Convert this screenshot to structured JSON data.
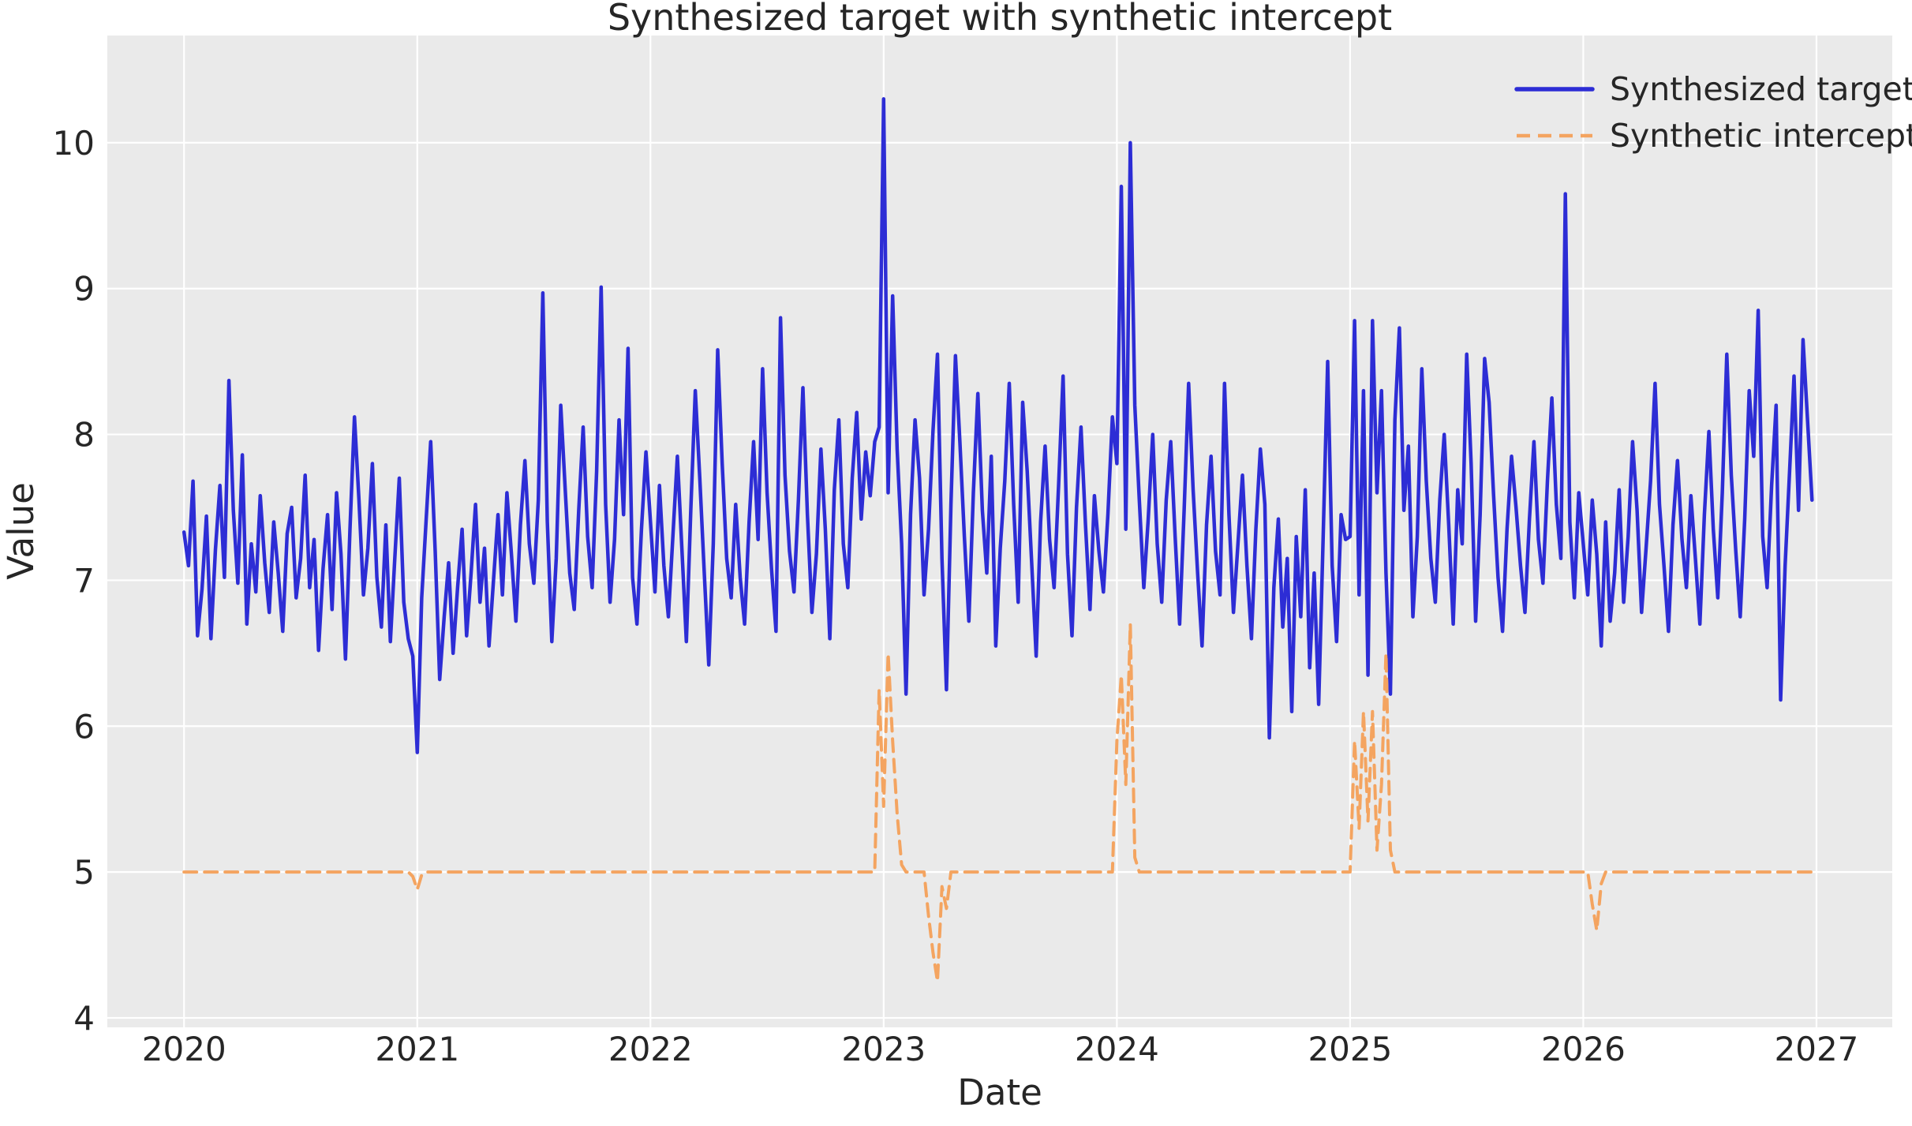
{
  "title": "Synthesized target with synthetic intercept",
  "axes": {
    "xlabel": "Date",
    "ylabel": "Value"
  },
  "legend": {
    "position": "upper right",
    "entries": [
      {
        "label": "Synthesized target",
        "color": "#2d2dd5",
        "dash": false
      },
      {
        "label": "Synthetic intercept",
        "color": "#f4a460",
        "dash": true
      }
    ]
  },
  "colors": {
    "figure_bg": "#ffffff",
    "plot_bg": "#eaeaea",
    "grid": "#ffffff",
    "text": "#262626",
    "target_line": "#2d2dd5",
    "intercept_line": "#f4a460"
  },
  "chart_data": {
    "type": "line",
    "title": "Synthesized target with synthetic intercept",
    "xlabel": "Date",
    "ylabel": "Value",
    "x_start": 2020.0,
    "x_step": 0.0192308,
    "n_points": 364,
    "xlim": [
      2019.671,
      2027.325
    ],
    "ylim": [
      3.935,
      10.735
    ],
    "xticks": [
      2020,
      2021,
      2022,
      2023,
      2024,
      2025,
      2026,
      2027
    ],
    "yticks": [
      4,
      5,
      6,
      7,
      8,
      9,
      10
    ],
    "grid": true,
    "legend_position": "upper right",
    "series": [
      {
        "name": "Synthesized target",
        "color": "#2d2dd5",
        "style": "solid",
        "line_width": 4.5,
        "values": [
          7.33,
          7.1,
          7.68,
          6.62,
          6.94,
          7.44,
          6.6,
          7.21,
          7.65,
          7.02,
          8.37,
          7.48,
          6.98,
          7.86,
          6.7,
          7.25,
          6.92,
          7.58,
          7.12,
          6.78,
          7.4,
          7.05,
          6.65,
          7.32,
          7.5,
          6.88,
          7.15,
          7.72,
          6.95,
          7.28,
          6.52,
          7.08,
          7.45,
          6.8,
          7.6,
          7.18,
          6.46,
          7.35,
          8.12,
          7.55,
          6.9,
          7.22,
          7.8,
          7.02,
          6.68,
          7.38,
          6.58,
          7.15,
          7.7,
          6.85,
          6.6,
          6.48,
          5.82,
          6.88,
          7.42,
          7.95,
          7.2,
          6.32,
          6.75,
          7.12,
          6.5,
          6.95,
          7.35,
          6.62,
          7.05,
          7.52,
          6.85,
          7.22,
          6.55,
          7.0,
          7.45,
          6.9,
          7.6,
          7.18,
          6.72,
          7.38,
          7.82,
          7.25,
          6.98,
          7.55,
          8.97,
          7.4,
          6.58,
          7.15,
          8.2,
          7.62,
          7.05,
          6.8,
          7.48,
          8.05,
          7.3,
          6.95,
          7.75,
          9.01,
          7.52,
          6.85,
          7.28,
          8.1,
          7.45,
          8.59,
          7.02,
          6.7,
          7.35,
          7.88,
          7.4,
          6.92,
          7.65,
          7.1,
          6.75,
          7.3,
          7.85,
          7.22,
          6.58,
          7.48,
          8.3,
          7.7,
          7.05,
          6.42,
          7.25,
          8.58,
          7.8,
          7.15,
          6.88,
          7.52,
          7.02,
          6.7,
          7.4,
          7.95,
          7.28,
          8.45,
          7.6,
          7.08,
          6.65,
          8.8,
          7.72,
          7.2,
          6.92,
          7.55,
          8.32,
          7.45,
          6.78,
          7.18,
          7.9,
          7.35,
          6.6,
          7.62,
          8.1,
          7.25,
          6.95,
          7.7,
          8.15,
          7.42,
          7.88,
          7.58,
          7.95,
          8.05,
          10.3,
          7.6,
          8.95,
          7.9,
          7.25,
          6.22,
          7.45,
          8.1,
          7.7,
          6.9,
          7.35,
          8.02,
          8.55,
          7.15,
          6.25,
          7.52,
          8.54,
          7.95,
          7.3,
          6.72,
          7.6,
          8.28,
          7.48,
          7.05,
          7.85,
          6.55,
          7.22,
          7.68,
          8.35,
          7.52,
          6.85,
          8.22,
          7.75,
          7.12,
          6.48,
          7.4,
          7.92,
          7.28,
          6.95,
          7.65,
          8.4,
          7.18,
          6.62,
          7.5,
          8.05,
          7.38,
          6.8,
          7.58,
          7.2,
          6.92,
          7.45,
          8.12,
          7.8,
          9.7,
          7.35,
          10.0,
          8.2,
          7.55,
          6.95,
          7.42,
          8.0,
          7.25,
          6.85,
          7.55,
          7.95,
          7.3,
          6.7,
          7.48,
          8.35,
          7.62,
          7.05,
          6.55,
          7.38,
          7.85,
          7.2,
          6.9,
          8.35,
          7.45,
          6.78,
          7.25,
          7.72,
          7.1,
          6.6,
          7.35,
          7.9,
          7.52,
          5.92,
          6.95,
          7.42,
          6.68,
          7.15,
          6.1,
          7.3,
          6.75,
          7.62,
          6.4,
          7.05,
          6.15,
          7.3,
          8.5,
          7.1,
          6.58,
          7.45,
          7.28,
          7.3,
          8.78,
          6.9,
          8.3,
          6.35,
          8.78,
          7.6,
          8.3,
          7.05,
          6.22,
          8.1,
          8.73,
          7.48,
          7.92,
          6.75,
          7.3,
          8.45,
          7.68,
          7.15,
          6.85,
          7.55,
          8.0,
          7.38,
          6.7,
          7.62,
          7.25,
          8.55,
          7.8,
          6.72,
          7.45,
          8.52,
          8.22,
          7.58,
          7.02,
          6.65,
          7.35,
          7.85,
          7.5,
          7.1,
          6.78,
          7.42,
          7.95,
          7.28,
          6.98,
          7.68,
          8.25,
          7.52,
          7.15,
          9.65,
          7.4,
          6.88,
          7.6,
          7.25,
          6.9,
          7.55,
          7.18,
          6.55,
          7.4,
          6.72,
          7.05,
          7.62,
          6.85,
          7.3,
          7.95,
          7.48,
          6.78,
          7.22,
          7.68,
          8.35,
          7.52,
          7.1,
          6.65,
          7.38,
          7.82,
          7.28,
          6.95,
          7.58,
          7.15,
          6.7,
          7.45,
          8.02,
          7.35,
          6.88,
          7.6,
          8.55,
          7.72,
          7.2,
          6.75,
          7.42,
          8.3,
          7.85,
          8.85,
          7.3,
          6.95,
          7.65,
          8.2,
          6.18,
          7.1,
          7.75,
          8.4,
          7.48,
          8.65,
          8.1,
          7.55
        ]
      },
      {
        "name": "Synthetic intercept",
        "color": "#f4a460",
        "style": "dashed",
        "line_width": 4,
        "base_value": 5.0,
        "overrides": {
          "51": 4.97,
          "52": 4.88,
          "53": 4.98,
          "155": 6.25,
          "156": 5.45,
          "157": 6.5,
          "158": 5.9,
          "159": 5.4,
          "160": 5.05,
          "166": 4.7,
          "167": 4.45,
          "168": 4.25,
          "169": 4.9,
          "170": 4.75,
          "208": 5.9,
          "209": 6.35,
          "210": 5.6,
          "211": 6.7,
          "212": 5.1,
          "261": 5.9,
          "262": 5.3,
          "263": 6.1,
          "264": 5.35,
          "265": 6.1,
          "266": 5.15,
          "267": 5.6,
          "268": 6.5,
          "269": 5.15,
          "314": 4.78,
          "315": 4.6,
          "316": 4.92
        }
      }
    ]
  }
}
